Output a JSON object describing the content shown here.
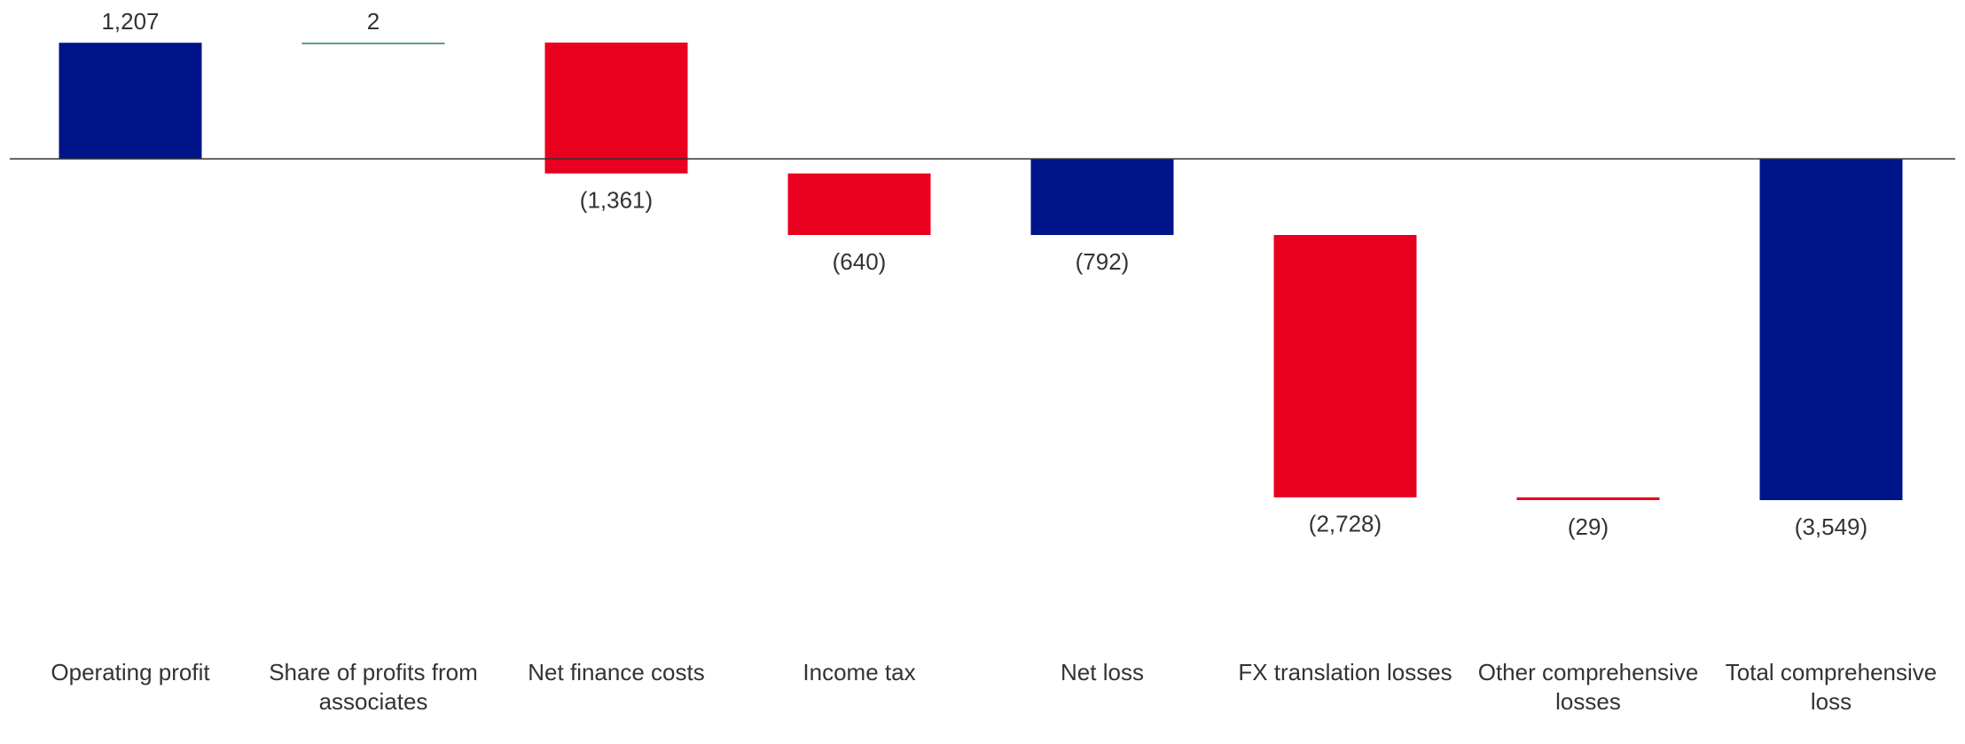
{
  "chart_data": {
    "type": "waterfall",
    "categories": [
      "Operating profit",
      "Share of profits from associates",
      "Net finance costs",
      "Income tax",
      "Net loss",
      "FX translation losses",
      "Other comprehensive losses",
      "Total comprehensive loss"
    ],
    "values": [
      1207,
      2,
      -1361,
      -640,
      -792,
      -2728,
      -29,
      -3549
    ],
    "value_labels": [
      "1,207",
      "2",
      "(1,361)",
      "(640)",
      "(792)",
      "(2,728)",
      "(29)",
      "(3,549)"
    ],
    "measure": [
      "relative",
      "relative",
      "relative",
      "relative",
      "total",
      "relative",
      "relative",
      "total"
    ],
    "colors": [
      "#001489",
      "#5b9b8d",
      "#e8001e",
      "#e8001e",
      "#001489",
      "#e8001e",
      "#e8001e",
      "#001489"
    ]
  }
}
